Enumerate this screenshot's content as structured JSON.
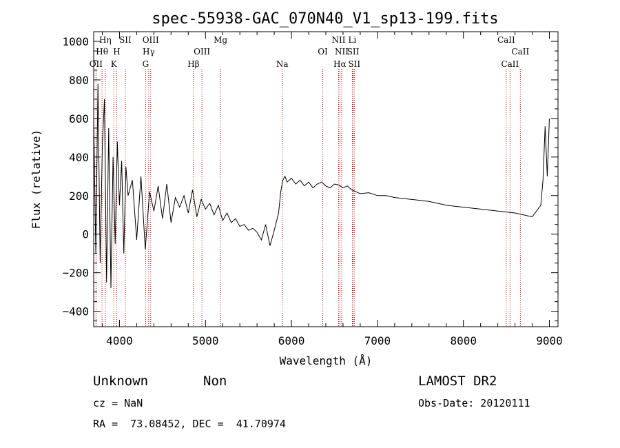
{
  "chart_data": {
    "type": "line",
    "title": "spec-55938-GAC_070N40_V1_sp13-199.fits",
    "xlabel": "Wavelength (Å)",
    "ylabel": "Flux (relative)",
    "xlim": [
      3700,
      9100
    ],
    "ylim": [
      -480,
      1050
    ],
    "xticks": [
      4000,
      5000,
      6000,
      7000,
      8000,
      9000
    ],
    "xtick_labels": [
      "4000",
      "5000",
      "6000",
      "7000",
      "8000",
      "9000"
    ],
    "yticks": [
      -400,
      -200,
      0,
      200,
      400,
      600,
      800,
      1000
    ],
    "ytick_labels": [
      "−400",
      "−200",
      "0",
      "200",
      "400",
      "600",
      "800",
      "1000"
    ],
    "grid": false,
    "legend": "none",
    "line_color": "#000000",
    "marker_color": "#cc0000",
    "spectral_lines": [
      {
        "label": "Hη",
        "wavelength": 3835,
        "row": 0
      },
      {
        "label": "SII",
        "wavelength": 4068,
        "row": 0
      },
      {
        "label": "OIII",
        "wavelength": 4363,
        "row": 0
      },
      {
        "label": "Mg",
        "wavelength": 5175,
        "row": 0
      },
      {
        "label": "NII",
        "wavelength": 6548,
        "row": 0
      },
      {
        "label": "Li",
        "wavelength": 6708,
        "row": 0
      },
      {
        "label": "CaII",
        "wavelength": 8498,
        "row": 0
      },
      {
        "label": "Hθ",
        "wavelength": 3797,
        "row": 1
      },
      {
        "label": "H",
        "wavelength": 3968,
        "row": 1
      },
      {
        "label": "Hγ",
        "wavelength": 4340,
        "row": 1
      },
      {
        "label": "OIII",
        "wavelength": 4959,
        "row": 1
      },
      {
        "label": "OI",
        "wavelength": 6364,
        "row": 1
      },
      {
        "label": "NII",
        "wavelength": 6584,
        "row": 1
      },
      {
        "label": "SII",
        "wavelength": 6717,
        "row": 1
      },
      {
        "label": "CaII",
        "wavelength": 8662,
        "row": 1
      },
      {
        "label": "OII",
        "wavelength": 3727,
        "row": 2
      },
      {
        "label": "K",
        "wavelength": 3934,
        "row": 2
      },
      {
        "label": "G",
        "wavelength": 4304,
        "row": 2
      },
      {
        "label": "Hβ",
        "wavelength": 4861,
        "row": 2
      },
      {
        "label": "Na",
        "wavelength": 5893,
        "row": 2
      },
      {
        "label": "Hα",
        "wavelength": 6563,
        "row": 2
      },
      {
        "label": "SII",
        "wavelength": 6731,
        "row": 2
      },
      {
        "label": "CaII",
        "wavelength": 8542,
        "row": 2
      }
    ],
    "series": [
      {
        "x": [
          3700,
          3725,
          3750,
          3775,
          3800,
          3825,
          3850,
          3875,
          3900,
          3925,
          3950,
          3975,
          4000,
          4025,
          4050,
          4075,
          4100,
          4150,
          4200,
          4250,
          4300,
          4350,
          4400,
          4450,
          4500,
          4550,
          4600,
          4650,
          4700,
          4750,
          4800,
          4850,
          4900,
          4950,
          5000,
          5050,
          5100,
          5150,
          5200,
          5250,
          5300,
          5350,
          5400,
          5450,
          5500,
          5550,
          5600,
          5650,
          5700,
          5750,
          5800,
          5850,
          5875,
          5900,
          5925,
          5950,
          6000,
          6050,
          6100,
          6150,
          6200,
          6250,
          6300,
          6350,
          6400,
          6450,
          6500,
          6550,
          6600,
          6650,
          6700,
          6750,
          6800,
          6900,
          7000,
          7100,
          7200,
          7300,
          7400,
          7500,
          7600,
          7700,
          7800,
          7900,
          8000,
          8100,
          8200,
          8300,
          8400,
          8500,
          8600,
          8650,
          8700,
          8750,
          8800,
          8850,
          8900,
          8925,
          8950,
          8975,
          9000
        ],
        "y": [
          600,
          -100,
          780,
          -150,
          450,
          700,
          -250,
          550,
          -280,
          400,
          -50,
          480,
          150,
          380,
          -100,
          350,
          200,
          280,
          -30,
          300,
          -80,
          220,
          120,
          250,
          80,
          260,
          60,
          190,
          140,
          200,
          110,
          230,
          90,
          180,
          130,
          160,
          100,
          150,
          70,
          110,
          60,
          80,
          40,
          50,
          20,
          30,
          10,
          -30,
          50,
          -60,
          20,
          110,
          220,
          280,
          300,
          270,
          290,
          260,
          280,
          250,
          270,
          240,
          260,
          270,
          250,
          240,
          260,
          255,
          240,
          250,
          230,
          220,
          210,
          215,
          200,
          200,
          190,
          185,
          180,
          175,
          170,
          160,
          150,
          145,
          140,
          135,
          130,
          125,
          120,
          115,
          110,
          105,
          100,
          95,
          90,
          120,
          150,
          280,
          560,
          300,
          600
        ]
      }
    ],
    "annotations": {
      "object_class": "Unknown",
      "subclass": "Non",
      "survey": "LAMOST DR2",
      "cz": "cz = NaN",
      "obs_date": "Obs-Date: 20120111",
      "coords": "RA =  73.08452, DEC =  41.70974"
    }
  }
}
